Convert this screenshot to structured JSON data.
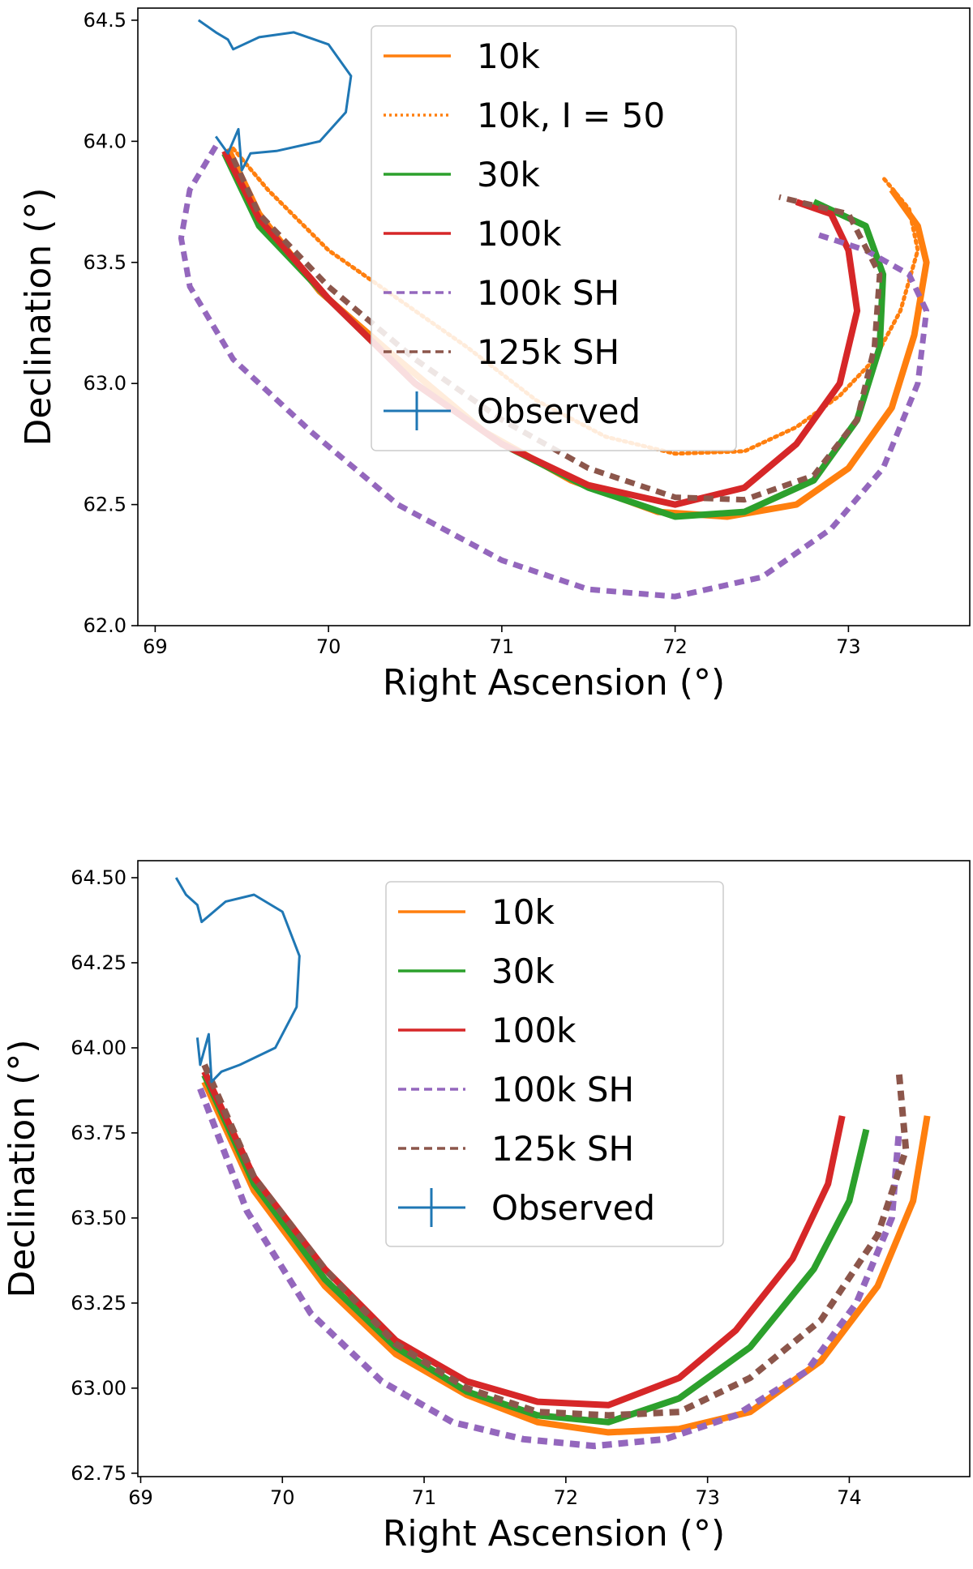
{
  "chart_data": [
    {
      "type": "line",
      "title": "",
      "xlabel": "Right Ascension (°)",
      "ylabel": "Declination (°)",
      "xlim": [
        68.9,
        73.7
      ],
      "ylim": [
        62.0,
        64.55
      ],
      "xticks": [
        "69",
        "70",
        "71",
        "72",
        "73"
      ],
      "yticks": [
        "62.0",
        "62.5",
        "63.0",
        "63.5",
        "64.0",
        "64.5"
      ],
      "grid": false,
      "legend_position": "top-center",
      "series": [
        {
          "name": "10k",
          "style": "solid",
          "color": "#ff7f0e",
          "width": 8,
          "points": [
            [
              69.42,
              63.97
            ],
            [
              69.6,
              63.7
            ],
            [
              69.95,
              63.38
            ],
            [
              70.4,
              63.1
            ],
            [
              70.9,
              62.8
            ],
            [
              71.4,
              62.6
            ],
            [
              71.9,
              62.47
            ],
            [
              72.3,
              62.45
            ],
            [
              72.7,
              62.5
            ],
            [
              73.0,
              62.65
            ],
            [
              73.25,
              62.9
            ],
            [
              73.38,
              63.2
            ],
            [
              73.45,
              63.5
            ],
            [
              73.4,
              63.65
            ],
            [
              73.25,
              63.8
            ]
          ]
        },
        {
          "name": "10k, I = 50",
          "style": "dotted",
          "color": "#ff7f0e",
          "width": 5,
          "points": [
            [
              69.45,
              63.97
            ],
            [
              69.65,
              63.8
            ],
            [
              70.0,
              63.55
            ],
            [
              70.4,
              63.35
            ],
            [
              70.8,
              63.15
            ],
            [
              71.2,
              62.93
            ],
            [
              71.6,
              62.78
            ],
            [
              72.0,
              62.71
            ],
            [
              72.4,
              62.72
            ],
            [
              72.7,
              62.82
            ],
            [
              72.95,
              62.95
            ],
            [
              73.15,
              63.1
            ],
            [
              73.3,
              63.3
            ],
            [
              73.4,
              63.55
            ],
            [
              73.35,
              63.72
            ],
            [
              73.2,
              63.85
            ]
          ]
        },
        {
          "name": "30k",
          "style": "solid",
          "color": "#2ca02c",
          "width": 8,
          "points": [
            [
              69.4,
              63.95
            ],
            [
              69.6,
              63.65
            ],
            [
              70.0,
              63.35
            ],
            [
              70.5,
              63.0
            ],
            [
              71.0,
              62.75
            ],
            [
              71.5,
              62.57
            ],
            [
              72.0,
              62.45
            ],
            [
              72.4,
              62.47
            ],
            [
              72.8,
              62.6
            ],
            [
              73.05,
              62.85
            ],
            [
              73.18,
              63.15
            ],
            [
              73.2,
              63.45
            ],
            [
              73.1,
              63.65
            ],
            [
              72.8,
              63.75
            ]
          ]
        },
        {
          "name": "100k",
          "style": "solid",
          "color": "#d62728",
          "width": 8,
          "points": [
            [
              69.4,
              63.96
            ],
            [
              69.6,
              63.68
            ],
            [
              70.0,
              63.35
            ],
            [
              70.5,
              63.0
            ],
            [
              71.0,
              62.75
            ],
            [
              71.5,
              62.58
            ],
            [
              72.0,
              62.5
            ],
            [
              72.4,
              62.57
            ],
            [
              72.7,
              62.75
            ],
            [
              72.95,
              63.0
            ],
            [
              73.05,
              63.3
            ],
            [
              73.0,
              63.55
            ],
            [
              72.9,
              63.7
            ],
            [
              72.7,
              63.75
            ]
          ]
        },
        {
          "name": "100k SH",
          "style": "dashed",
          "color": "#9467bd",
          "width": 7,
          "points": [
            [
              69.35,
              63.98
            ],
            [
              69.2,
              63.8
            ],
            [
              69.15,
              63.6
            ],
            [
              69.2,
              63.4
            ],
            [
              69.45,
              63.1
            ],
            [
              69.9,
              62.8
            ],
            [
              70.4,
              62.5
            ],
            [
              71.0,
              62.27
            ],
            [
              71.5,
              62.15
            ],
            [
              72.0,
              62.12
            ],
            [
              72.5,
              62.2
            ],
            [
              72.9,
              62.4
            ],
            [
              73.2,
              62.65
            ],
            [
              73.4,
              63.0
            ],
            [
              73.45,
              63.3
            ],
            [
              73.35,
              63.45
            ],
            [
              73.1,
              63.55
            ],
            [
              72.8,
              63.62
            ]
          ]
        },
        {
          "name": "125k SH",
          "style": "dashed",
          "color": "#8c564b",
          "width": 7,
          "points": [
            [
              69.45,
              63.93
            ],
            [
              69.6,
              63.7
            ],
            [
              70.0,
              63.4
            ],
            [
              70.5,
              63.1
            ],
            [
              71.0,
              62.85
            ],
            [
              71.5,
              62.65
            ],
            [
              72.0,
              62.53
            ],
            [
              72.4,
              62.52
            ],
            [
              72.8,
              62.62
            ],
            [
              73.05,
              62.85
            ],
            [
              73.15,
              63.15
            ],
            [
              73.18,
              63.45
            ],
            [
              73.0,
              63.7
            ],
            [
              72.6,
              63.77
            ]
          ]
        },
        {
          "name": "Observed",
          "style": "solid",
          "color": "#1f77b4",
          "width": 3,
          "points": [
            [
              69.25,
              64.5
            ],
            [
              69.35,
              64.45
            ],
            [
              69.42,
              64.42
            ],
            [
              69.45,
              64.38
            ],
            [
              69.6,
              64.43
            ],
            [
              69.8,
              64.45
            ],
            [
              70.0,
              64.4
            ],
            [
              70.13,
              64.27
            ],
            [
              70.1,
              64.12
            ],
            [
              69.95,
              64.0
            ],
            [
              69.7,
              63.96
            ],
            [
              69.55,
              63.95
            ],
            [
              69.5,
              63.88
            ],
            [
              69.48,
              64.05
            ],
            [
              69.42,
              63.95
            ],
            [
              69.35,
              64.02
            ]
          ]
        }
      ]
    },
    {
      "type": "line",
      "title": "",
      "xlabel": "Right Ascension (°)",
      "ylabel": "Declination (°)",
      "xlim": [
        68.98,
        74.85
      ],
      "ylim": [
        62.74,
        64.55
      ],
      "xticks": [
        "69",
        "70",
        "71",
        "72",
        "73",
        "74"
      ],
      "yticks": [
        "62.75",
        "63.00",
        "63.25",
        "63.50",
        "63.75",
        "64.00",
        "64.25",
        "64.50"
      ],
      "grid": false,
      "legend_position": "top-center",
      "series": [
        {
          "name": "10k",
          "style": "solid",
          "color": "#ff7f0e",
          "width": 8,
          "points": [
            [
              69.45,
              63.9
            ],
            [
              69.8,
              63.58
            ],
            [
              70.3,
              63.3
            ],
            [
              70.8,
              63.1
            ],
            [
              71.3,
              62.98
            ],
            [
              71.8,
              62.9
            ],
            [
              72.3,
              62.87
            ],
            [
              72.8,
              62.88
            ],
            [
              73.3,
              62.93
            ],
            [
              73.8,
              63.08
            ],
            [
              74.2,
              63.3
            ],
            [
              74.45,
              63.55
            ],
            [
              74.55,
              63.8
            ]
          ]
        },
        {
          "name": "30k",
          "style": "solid",
          "color": "#2ca02c",
          "width": 8,
          "points": [
            [
              69.45,
              63.92
            ],
            [
              69.8,
              63.6
            ],
            [
              70.3,
              63.32
            ],
            [
              70.8,
              63.12
            ],
            [
              71.3,
              62.99
            ],
            [
              71.8,
              62.92
            ],
            [
              72.3,
              62.9
            ],
            [
              72.8,
              62.97
            ],
            [
              73.3,
              63.12
            ],
            [
              73.75,
              63.35
            ],
            [
              74.0,
              63.55
            ],
            [
              74.12,
              63.76
            ]
          ]
        },
        {
          "name": "100k",
          "style": "solid",
          "color": "#d62728",
          "width": 8,
          "points": [
            [
              69.45,
              63.93
            ],
            [
              69.8,
              63.62
            ],
            [
              70.3,
              63.35
            ],
            [
              70.8,
              63.14
            ],
            [
              71.3,
              63.02
            ],
            [
              71.8,
              62.96
            ],
            [
              72.3,
              62.95
            ],
            [
              72.8,
              63.03
            ],
            [
              73.2,
              63.17
            ],
            [
              73.6,
              63.38
            ],
            [
              73.85,
              63.6
            ],
            [
              73.95,
              63.8
            ]
          ]
        },
        {
          "name": "100k SH",
          "style": "dashed",
          "color": "#9467bd",
          "width": 8,
          "points": [
            [
              69.42,
              63.88
            ],
            [
              69.75,
              63.52
            ],
            [
              70.2,
              63.22
            ],
            [
              70.7,
              63.02
            ],
            [
              71.2,
              62.9
            ],
            [
              71.7,
              62.85
            ],
            [
              72.2,
              62.83
            ],
            [
              72.7,
              62.85
            ],
            [
              73.2,
              62.92
            ],
            [
              73.7,
              63.05
            ],
            [
              74.05,
              63.25
            ],
            [
              74.3,
              63.5
            ],
            [
              74.35,
              63.75
            ]
          ]
        },
        {
          "name": "125k SH",
          "style": "dashed",
          "color": "#8c564b",
          "width": 8,
          "points": [
            [
              69.45,
              63.95
            ],
            [
              69.8,
              63.62
            ],
            [
              70.3,
              63.35
            ],
            [
              70.8,
              63.13
            ],
            [
              71.3,
              63.0
            ],
            [
              71.8,
              62.93
            ],
            [
              72.3,
              62.92
            ],
            [
              72.8,
              62.93
            ],
            [
              73.3,
              63.03
            ],
            [
              73.8,
              63.2
            ],
            [
              74.2,
              63.45
            ],
            [
              74.4,
              63.7
            ],
            [
              74.35,
              63.93
            ]
          ]
        },
        {
          "name": "Observed",
          "style": "solid",
          "color": "#1f77b4",
          "width": 3,
          "points": [
            [
              69.25,
              64.5
            ],
            [
              69.32,
              64.45
            ],
            [
              69.4,
              64.42
            ],
            [
              69.43,
              64.37
            ],
            [
              69.6,
              64.43
            ],
            [
              69.8,
              64.45
            ],
            [
              70.0,
              64.4
            ],
            [
              70.12,
              64.27
            ],
            [
              70.1,
              64.12
            ],
            [
              69.95,
              64.0
            ],
            [
              69.7,
              63.95
            ],
            [
              69.57,
              63.93
            ],
            [
              69.5,
              63.9
            ],
            [
              69.48,
              64.04
            ],
            [
              69.42,
              63.95
            ],
            [
              69.4,
              64.03
            ]
          ]
        }
      ]
    }
  ]
}
